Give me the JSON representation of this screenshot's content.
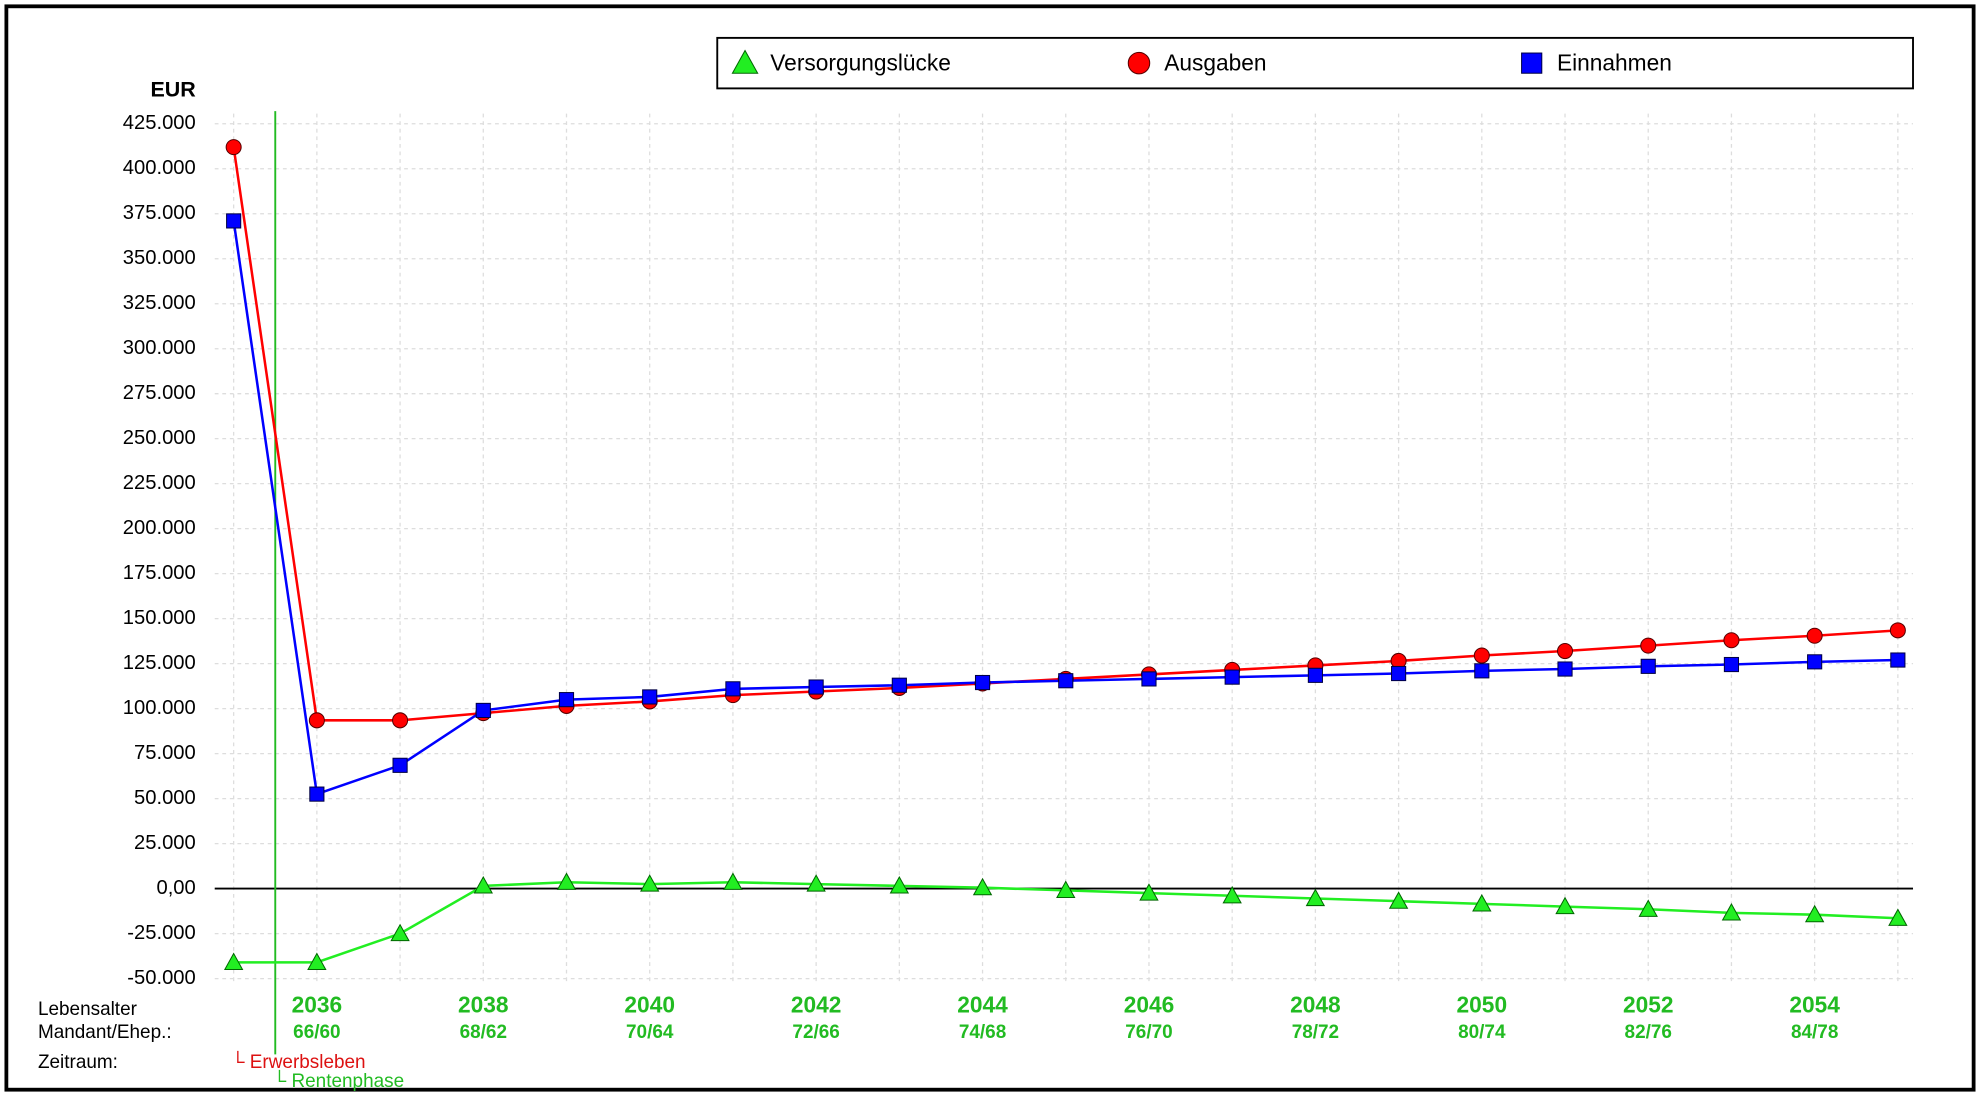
{
  "chart_data": {
    "type": "line",
    "y_axis_label": "EUR",
    "categories": [
      null,
      "2036",
      null,
      "2038",
      null,
      "2040",
      null,
      "2042",
      null,
      "2044",
      null,
      "2046",
      null,
      "2048",
      null,
      "2050",
      null,
      "2052",
      null,
      "2054",
      null
    ],
    "age_labels": [
      null,
      "66/60",
      null,
      "68/62",
      null,
      "70/64",
      null,
      "72/66",
      null,
      "74/68",
      null,
      "76/70",
      null,
      "78/72",
      null,
      "80/74",
      null,
      "82/76",
      null,
      "84/78",
      null
    ],
    "row_labels": [
      "Lebensalter",
      "Mandant/Ehep.:",
      "Zeitraum:"
    ],
    "phases": [
      "└ Erwerbsleben",
      "└ Rentenphase"
    ],
    "phase_colors": [
      "#dd1111",
      "#22bb22"
    ],
    "series": [
      {
        "name": "Versorgungslücke",
        "color": "#22ee22",
        "marker": "triangle",
        "values": [
          -41000,
          -41000,
          -25000,
          1500,
          3500,
          2500,
          3500,
          2500,
          1500,
          500,
          -1000,
          -2500,
          -4000,
          -5500,
          -7000,
          -8500,
          -10000,
          -11500,
          -13500,
          -14500,
          -16500
        ]
      },
      {
        "name": "Ausgaben",
        "color": "#ff0000",
        "marker": "circle",
        "values": [
          412000,
          93500,
          93500,
          97500,
          101500,
          104000,
          107500,
          109500,
          111500,
          114000,
          116500,
          119000,
          121500,
          124000,
          126500,
          129500,
          132000,
          135000,
          138000,
          140500,
          143500
        ]
      },
      {
        "name": "Einnahmen",
        "color": "#0000ff",
        "marker": "square",
        "values": [
          371000,
          52500,
          68500,
          99000,
          105000,
          106500,
          111000,
          112000,
          113000,
          114500,
          115500,
          116500,
          117500,
          118500,
          119500,
          121000,
          122000,
          123500,
          124500,
          126000,
          127000
        ]
      }
    ],
    "ylim": [
      -50000,
      425000
    ],
    "yticks": [
      {
        "value": -50000,
        "label": "-50.000"
      },
      {
        "value": -25000,
        "label": "-25.000"
      },
      {
        "value": 0,
        "label": "0,00"
      },
      {
        "value": 25000,
        "label": "25.000"
      },
      {
        "value": 50000,
        "label": "50.000"
      },
      {
        "value": 75000,
        "label": "75.000"
      },
      {
        "value": 100000,
        "label": "100.000"
      },
      {
        "value": 125000,
        "label": "125.000"
      },
      {
        "value": 150000,
        "label": "150.000"
      },
      {
        "value": 175000,
        "label": "175.000"
      },
      {
        "value": 200000,
        "label": "200.000"
      },
      {
        "value": 225000,
        "label": "225.000"
      },
      {
        "value": 250000,
        "label": "250.000"
      },
      {
        "value": 275000,
        "label": "275.000"
      },
      {
        "value": 300000,
        "label": "300.000"
      },
      {
        "value": 325000,
        "label": "325.000"
      },
      {
        "value": 350000,
        "label": "350.000"
      },
      {
        "value": 375000,
        "label": "375.000"
      },
      {
        "value": 400000,
        "label": "400.000"
      },
      {
        "value": 425000,
        "label": "425.000"
      }
    ],
    "grid": true,
    "legend": "top"
  }
}
